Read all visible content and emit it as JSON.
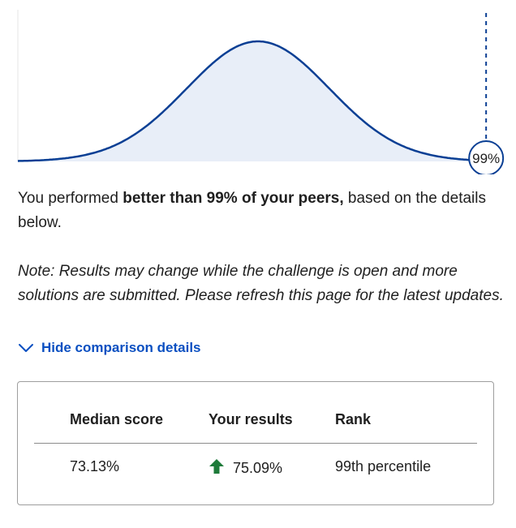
{
  "chart_data": {
    "type": "area",
    "distribution": "normal",
    "marker": {
      "label": "99%",
      "percentile": 99
    },
    "colors": {
      "curve": "#0a3f94",
      "fill": "#e8eef8",
      "marker": "#0a3f94"
    }
  },
  "summary": {
    "prefix": "You performed ",
    "highlight": "better than 99% of your peers,",
    "suffix": " based on the details below."
  },
  "note": "Note: Results may change while the challenge is open and more solutions are submitted. Please refresh this page for the latest updates.",
  "toggle": {
    "label": "Hide comparison details",
    "icon": "chevron-down-icon"
  },
  "comparison": {
    "headers": [
      "Median score",
      "Your results",
      "Rank"
    ],
    "values": {
      "median": "73.13%",
      "your_result": "75.09%",
      "rank": "99th percentile"
    },
    "trend_icon": "arrow-up-icon",
    "trend_color": "#1e7b3a"
  }
}
